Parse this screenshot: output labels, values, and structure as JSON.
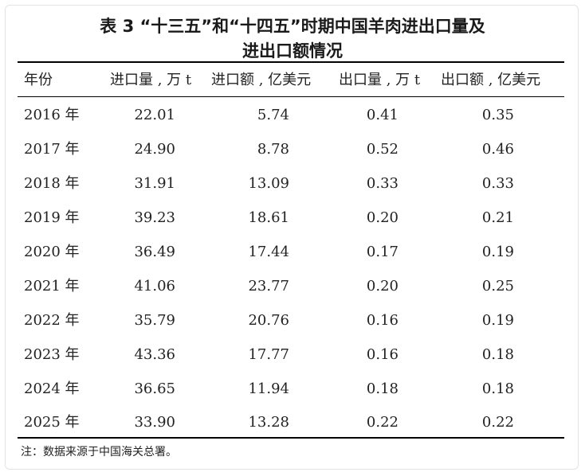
{
  "title": {
    "line1": "表 3 “十三五”和“十四五”时期中国羊肉进出口量及",
    "line2": "进出口额情况"
  },
  "table": {
    "headers": [
      "年份",
      "进口量 , 万 t",
      "进口额 , 亿美元",
      "出口量 , 万 t",
      "出口额 , 亿美元"
    ],
    "rows": [
      [
        "2016 年",
        "22.01",
        "5.74",
        "0.41",
        "0.35"
      ],
      [
        "2017 年",
        "24.90",
        "8.78",
        "0.52",
        "0.46"
      ],
      [
        "2018 年",
        "31.91",
        "13.09",
        "0.33",
        "0.33"
      ],
      [
        "2019 年",
        "39.23",
        "18.61",
        "0.20",
        "0.21"
      ],
      [
        "2020 年",
        "36.49",
        "17.44",
        "0.17",
        "0.19"
      ],
      [
        "2021 年",
        "41.06",
        "23.77",
        "0.20",
        "0.25"
      ],
      [
        "2022 年",
        "35.79",
        "20.76",
        "0.16",
        "0.19"
      ],
      [
        "2023 年",
        "43.36",
        "17.77",
        "0.16",
        "0.18"
      ],
      [
        "2024 年",
        "36.65",
        "11.94",
        "0.18",
        "0.18"
      ],
      [
        "2025 年",
        "33.90",
        "13.28",
        "0.22",
        "0.22"
      ]
    ]
  },
  "note": "注：数据来源于中国海关总署。"
}
